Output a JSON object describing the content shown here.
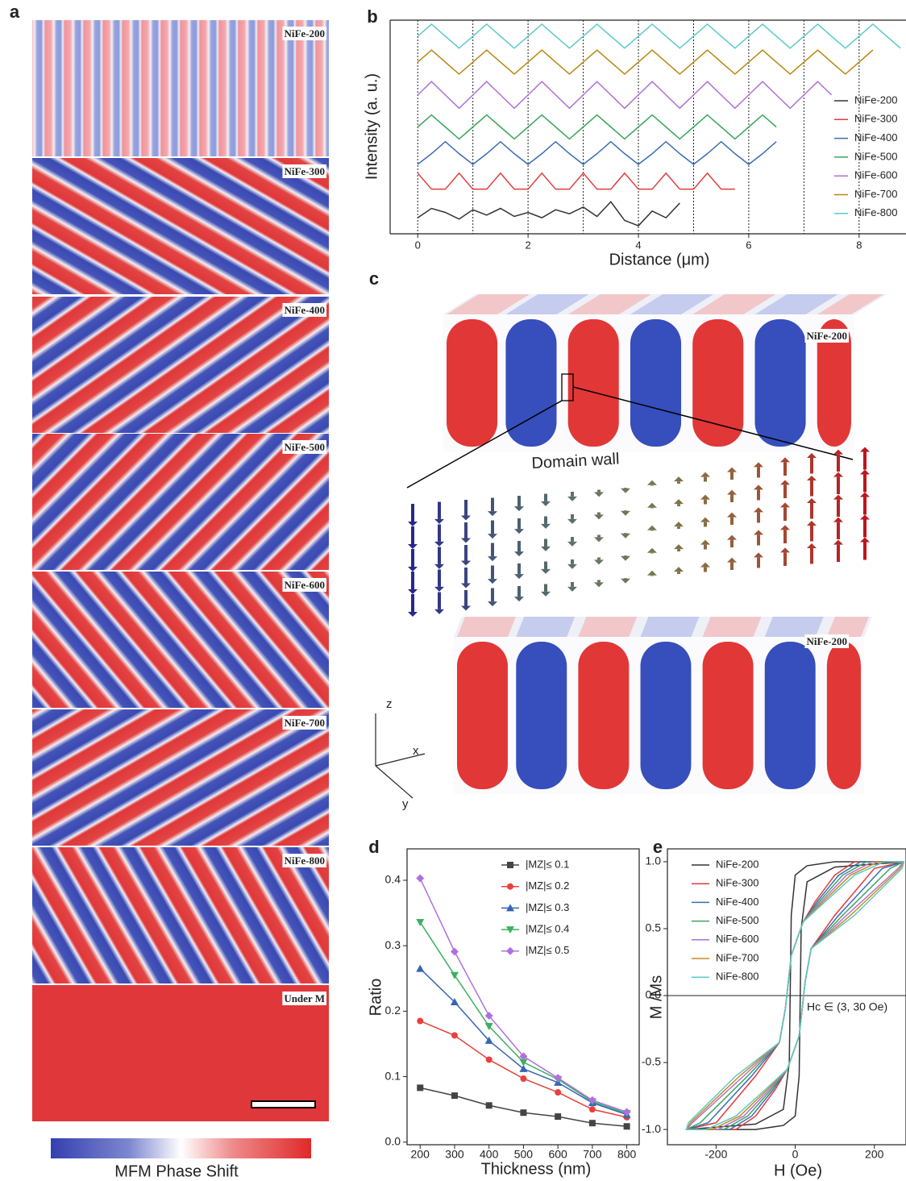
{
  "panel_labels": [
    "a",
    "b",
    "c",
    "d",
    "e"
  ],
  "panel_a": {
    "images": [
      "NiFe-200",
      "NiFe-300",
      "NiFe-400",
      "NiFe-500",
      "NiFe-600",
      "NiFe-700",
      "NiFe-800",
      "Under M"
    ],
    "colorbar_label": "MFM Phase Shift"
  },
  "panel_c": {
    "labels": [
      "NiFe-200",
      "NiFe-200"
    ],
    "annotation": "Domain wall",
    "axes": [
      "z",
      "x",
      "y"
    ]
  },
  "chart_data": [
    {
      "type": "line",
      "xlabel": "Distance (μm)",
      "ylabel": "Intensity (a. u.)",
      "xlim": [
        -0.5,
        8.85
      ],
      "xticks": [
        0,
        2,
        4,
        6,
        8
      ],
      "ylim": [
        0,
        8
      ],
      "x_gridlines": [
        0,
        1,
        2,
        3,
        4,
        5,
        6,
        7,
        8
      ],
      "x": [
        0,
        0.25,
        0.5,
        0.75,
        1,
        1.25,
        1.5,
        1.75,
        2,
        2.25,
        2.5,
        2.75,
        3,
        3.25,
        3.5,
        3.75,
        4,
        4.25,
        4.5,
        4.75,
        5,
        5.25,
        5.5,
        5.75,
        6,
        6.25,
        6.5,
        6.75,
        7,
        7.25,
        7.5,
        7.75,
        8,
        8.25,
        8.5,
        8.75
      ],
      "series": [
        {
          "name": "NiFe-200",
          "color": "#333333",
          "values": [
            0.6,
            0.95,
            0.8,
            0.55,
            0.9,
            0.7,
            0.95,
            0.65,
            0.8,
            0.6,
            0.9,
            0.75,
            1.0,
            0.65,
            1.2,
            0.5,
            0.3,
            0.85,
            0.6,
            1.15,
            null,
            null,
            null,
            null,
            null,
            null,
            null,
            null,
            null,
            null,
            null,
            null,
            null,
            null,
            null,
            null
          ]
        },
        {
          "name": "NiFe-300",
          "color": "#e03c3c",
          "values": [
            2.27,
            1.67,
            1.67,
            2.27,
            1.67,
            1.67,
            2.27,
            1.67,
            1.67,
            2.27,
            1.67,
            1.67,
            2.27,
            1.67,
            1.67,
            2.27,
            1.67,
            1.67,
            2.27,
            1.67,
            1.67,
            2.27,
            1.67,
            1.67,
            null,
            null,
            null,
            null,
            null,
            null,
            null,
            null,
            null,
            null,
            null,
            null
          ]
        },
        {
          "name": "NiFe-400",
          "color": "#3b6cb7",
          "values": [
            2.6,
            3.0,
            3.45,
            3.0,
            2.6,
            3.0,
            3.45,
            3.0,
            2.6,
            3.0,
            3.45,
            3.0,
            2.6,
            3.0,
            3.45,
            3.0,
            2.6,
            3.0,
            3.45,
            3.0,
            2.6,
            3.0,
            3.45,
            3.0,
            2.6,
            3.0,
            3.45,
            null,
            null,
            null,
            null,
            null,
            null,
            null,
            null,
            null
          ]
        },
        {
          "name": "NiFe-500",
          "color": "#3aa55a",
          "values": [
            4.0,
            4.45,
            4.0,
            3.55,
            4.0,
            4.45,
            4.0,
            3.55,
            4.0,
            4.45,
            4.0,
            3.55,
            4.0,
            4.45,
            4.0,
            3.55,
            4.0,
            4.45,
            4.0,
            3.55,
            4.0,
            4.45,
            4.0,
            3.55,
            4.0,
            4.45,
            4.0,
            null,
            null,
            null,
            null,
            null,
            null,
            null,
            null,
            null
          ]
        },
        {
          "name": "NiFe-600",
          "color": "#b06fd6",
          "values": [
            5.2,
            5.7,
            5.2,
            4.7,
            5.2,
            5.7,
            5.2,
            4.7,
            5.2,
            5.7,
            5.2,
            4.7,
            5.2,
            5.7,
            5.2,
            4.7,
            5.2,
            5.7,
            5.2,
            4.7,
            5.2,
            5.7,
            5.2,
            4.7,
            5.2,
            5.7,
            5.2,
            4.7,
            5.2,
            5.7,
            5.2,
            null,
            null,
            null,
            null,
            null
          ]
        },
        {
          "name": "NiFe-700",
          "color": "#b8860b",
          "values": [
            6.43,
            6.88,
            6.43,
            5.98,
            6.43,
            6.88,
            6.43,
            5.98,
            6.43,
            6.88,
            6.43,
            5.98,
            6.43,
            6.88,
            6.43,
            5.98,
            6.43,
            6.88,
            6.43,
            5.98,
            6.43,
            6.88,
            6.43,
            5.98,
            6.43,
            6.88,
            6.43,
            5.98,
            6.43,
            6.88,
            6.43,
            5.98,
            6.43,
            6.88,
            null,
            null
          ]
        },
        {
          "name": "NiFe-800",
          "color": "#5bc8c8",
          "values": [
            7.4,
            7.85,
            7.4,
            6.95,
            7.4,
            7.85,
            7.4,
            6.95,
            7.4,
            7.85,
            7.4,
            6.95,
            7.4,
            7.85,
            7.4,
            6.95,
            7.4,
            7.85,
            7.4,
            6.95,
            7.4,
            7.85,
            7.4,
            6.95,
            7.4,
            7.85,
            7.4,
            6.95,
            7.4,
            7.85,
            7.4,
            6.95,
            7.4,
            7.85,
            7.4,
            6.95
          ]
        }
      ]
    },
    {
      "type": "line",
      "xlabel": "Thickness (nm)",
      "ylabel": "Ratio",
      "xlim": [
        162,
        836
      ],
      "xticks": [
        200,
        300,
        400,
        500,
        600,
        700,
        800
      ],
      "ylim": [
        -0.004,
        0.448
      ],
      "yticks": [
        {
          "value": 0,
          "label": "0.0"
        },
        0.1,
        0.2,
        0.3,
        0.4
      ],
      "x": [
        200,
        300,
        400,
        500,
        600,
        700,
        800
      ],
      "series": [
        {
          "name": "|MZ|≤ 0.1",
          "color": "#444444",
          "marker": "square",
          "values": [
            0.083,
            0.071,
            0.056,
            0.045,
            0.039,
            0.029,
            0.024
          ]
        },
        {
          "name": "|MZ|≤ 0.2",
          "color": "#e8403c",
          "marker": "circle",
          "values": [
            0.185,
            0.163,
            0.126,
            0.097,
            0.076,
            0.05,
            0.038
          ]
        },
        {
          "name": "|MZ|≤ 0.3",
          "color": "#3565b5",
          "marker": "triangle-up",
          "values": [
            0.265,
            0.214,
            0.155,
            0.112,
            0.091,
            0.06,
            0.042
          ]
        },
        {
          "name": "|MZ|≤ 0.4",
          "color": "#3db060",
          "marker": "triangle-down",
          "values": [
            0.336,
            0.255,
            0.177,
            0.122,
            0.096,
            0.062,
            0.044
          ]
        },
        {
          "name": "|MZ|≤ 0.5",
          "color": "#b070dc",
          "marker": "diamond",
          "values": [
            0.403,
            0.291,
            0.193,
            0.131,
            0.098,
            0.064,
            0.046
          ]
        }
      ]
    },
    {
      "type": "line",
      "xlabel": "H (Oe)",
      "ylabel": "M /Ms",
      "annotation": "Hc ∈ (3, 30 Oe)",
      "xlim": [
        -323,
        280
      ],
      "xticks": [
        -200,
        0,
        200
      ],
      "ylim": [
        -1.114,
        1.096
      ],
      "yticks": [
        {
          "value": -1,
          "label": "-1.0"
        },
        -0.5,
        {
          "value": 0,
          "label": "0.0"
        },
        0.5,
        {
          "value": 1,
          "label": "1.0"
        }
      ],
      "series": [
        {
          "name": "NiFe-200",
          "color": "#333333",
          "x": [
            275,
            100,
            30,
            0,
            -10,
            -15,
            -30,
            -100,
            -275,
            -275,
            -100,
            -30,
            0,
            10,
            15,
            30,
            100,
            275
          ],
          "values": [
            1,
            1,
            0.97,
            0.9,
            0.6,
            -0.5,
            -0.85,
            -0.96,
            -1,
            -1,
            -1,
            -0.97,
            -0.9,
            -0.6,
            0.5,
            0.85,
            0.96,
            1
          ]
        },
        {
          "name": "NiFe-300",
          "color": "#e03c3c",
          "x": [
            275,
            150,
            100,
            50,
            20,
            -10,
            -25,
            -40,
            -100,
            -200,
            -275,
            -275,
            -150,
            -100,
            -50,
            -20,
            10,
            25,
            40,
            100,
            200,
            275
          ],
          "values": [
            1,
            1,
            0.9,
            0.7,
            0.55,
            0.3,
            -0.1,
            -0.35,
            -0.6,
            -0.95,
            -1,
            -1,
            -1,
            -0.9,
            -0.7,
            -0.55,
            -0.3,
            0.1,
            0.35,
            0.6,
            0.95,
            1
          ]
        },
        {
          "name": "NiFe-400",
          "color": "#3b6cb7",
          "x": [
            275,
            165,
            110,
            55,
            20,
            -10,
            -25,
            -40,
            -110,
            -220,
            -275,
            -275,
            -165,
            -110,
            -55,
            -20,
            10,
            25,
            40,
            110,
            220,
            275
          ],
          "values": [
            1,
            1,
            0.9,
            0.7,
            0.55,
            0.3,
            -0.1,
            -0.35,
            -0.6,
            -0.95,
            -1,
            -1,
            -1,
            -0.9,
            -0.7,
            -0.55,
            -0.3,
            0.1,
            0.35,
            0.6,
            0.95,
            1
          ]
        },
        {
          "name": "NiFe-500",
          "color": "#3aa55a",
          "x": [
            275,
            180,
            120,
            60,
            20,
            -10,
            -25,
            -40,
            -120,
            -240,
            -275,
            -275,
            -180,
            -120,
            -60,
            -20,
            10,
            25,
            40,
            120,
            240,
            275
          ],
          "values": [
            1,
            1,
            0.9,
            0.7,
            0.55,
            0.3,
            -0.1,
            -0.35,
            -0.6,
            -0.95,
            -1,
            -1,
            -1,
            -0.9,
            -0.7,
            -0.55,
            -0.3,
            0.1,
            0.35,
            0.6,
            0.95,
            1
          ]
        },
        {
          "name": "NiFe-600",
          "color": "#b06fd6",
          "x": [
            275,
            195,
            130,
            65,
            20,
            -10,
            -25,
            -40,
            -130,
            -260,
            -275,
            -275,
            -195,
            -130,
            -65,
            -20,
            10,
            25,
            40,
            130,
            260,
            275
          ],
          "values": [
            1,
            1,
            0.9,
            0.7,
            0.55,
            0.3,
            -0.1,
            -0.35,
            -0.6,
            -0.95,
            -1,
            -1,
            -1,
            -0.9,
            -0.7,
            -0.55,
            -0.3,
            0.1,
            0.35,
            0.6,
            0.95,
            1
          ]
        },
        {
          "name": "NiFe-700",
          "color": "#c88a1a",
          "x": [
            275,
            210,
            140,
            70,
            20,
            -10,
            -25,
            -40,
            -140,
            -265,
            -275,
            -275,
            -210,
            -140,
            -70,
            -20,
            10,
            25,
            40,
            140,
            265,
            275
          ],
          "values": [
            1,
            1,
            0.9,
            0.7,
            0.55,
            0.3,
            -0.1,
            -0.35,
            -0.6,
            -0.95,
            -1,
            -1,
            -1,
            -0.9,
            -0.7,
            -0.55,
            -0.3,
            0.1,
            0.35,
            0.6,
            0.95,
            1
          ]
        },
        {
          "name": "NiFe-800",
          "color": "#5bc8c8",
          "x": [
            275,
            225,
            150,
            75,
            20,
            -10,
            -25,
            -40,
            -150,
            -270,
            -275,
            -275,
            -225,
            -150,
            -75,
            -20,
            10,
            25,
            40,
            150,
            270,
            275
          ],
          "values": [
            1,
            1,
            0.9,
            0.7,
            0.55,
            0.3,
            -0.1,
            -0.35,
            -0.6,
            -0.95,
            -1,
            -1,
            -1,
            -0.9,
            -0.7,
            -0.55,
            -0.3,
            0.1,
            0.35,
            0.6,
            0.95,
            1
          ]
        }
      ]
    }
  ]
}
